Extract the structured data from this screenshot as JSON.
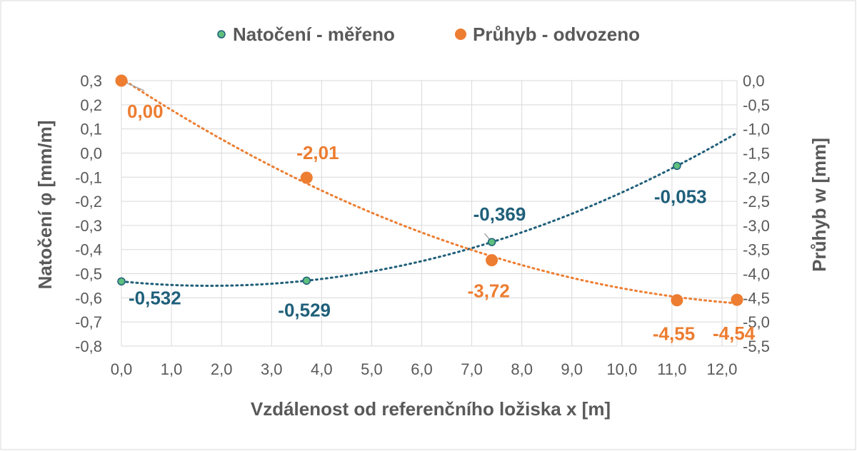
{
  "chart_data": {
    "type": "scatter",
    "x_axis": {
      "label": "Vzdálenost od referenčního ložiska x [m]",
      "range": [
        0,
        12.3
      ],
      "ticks": [
        0,
        1,
        2,
        3,
        4,
        5,
        6,
        7,
        8,
        9,
        10,
        11,
        12
      ],
      "tick_labels": [
        "0,0",
        "1,0",
        "2,0",
        "3,0",
        "4,0",
        "5,0",
        "6,0",
        "7,0",
        "8,0",
        "9,0",
        "10,0",
        "11,0",
        "12,0"
      ]
    },
    "y_axis_left": {
      "label": "Natočení φ [mm/m]",
      "range": [
        -0.8,
        0.3
      ],
      "ticks": [
        0.3,
        0.2,
        0.1,
        0.0,
        -0.1,
        -0.2,
        -0.3,
        -0.4,
        -0.5,
        -0.6,
        -0.7,
        -0.8
      ],
      "tick_labels": [
        "0,3",
        "0,2",
        "0,1",
        "0,0",
        "-0,1",
        "-0,2",
        "-0,3",
        "-0,4",
        "-0,5",
        "-0,6",
        "-0,7",
        "-0,8"
      ]
    },
    "y_axis_right": {
      "label": "Průhyb w [mm]",
      "range": [
        -5.5,
        0.0
      ],
      "ticks": [
        0.0,
        -0.5,
        -1.0,
        -1.5,
        -2.0,
        -2.5,
        -3.0,
        -3.5,
        -4.0,
        -4.5,
        -5.0,
        -5.5
      ],
      "tick_labels": [
        "0,0",
        "-0,5",
        "-1,0",
        "-1,5",
        "-2,0",
        "-2,5",
        "-3,0",
        "-3,5",
        "-4,0",
        "-4,5",
        "-5,0",
        "-5,5"
      ]
    },
    "grid": true,
    "legend_position": "top-center",
    "series": [
      {
        "name": "Natočení - měřeno",
        "axis": "left",
        "marker": "small-circle",
        "color": "#1f5f7a",
        "marker_fill": "#5fbf7f",
        "trendline": {
          "type": "polynomial-2",
          "style": "dotted",
          "x_range": [
            0,
            12.3
          ]
        },
        "points": [
          {
            "x": 0.0,
            "y": -0.532,
            "label": "-0,532"
          },
          {
            "x": 3.7,
            "y": -0.529,
            "label": "-0,529"
          },
          {
            "x": 7.4,
            "y": -0.369,
            "label": "-0,369"
          },
          {
            "x": 11.1,
            "y": -0.053,
            "label": "-0,053"
          }
        ]
      },
      {
        "name": "Průhyb - odvozeno",
        "axis": "right",
        "marker": "large-circle",
        "color": "#ed7d31",
        "marker_fill": "#ed7d31",
        "trendline": {
          "type": "polynomial-2",
          "style": "dotted",
          "x_range": [
            0,
            12.3
          ]
        },
        "points": [
          {
            "x": 0.0,
            "y": 0.0,
            "label": "0,00"
          },
          {
            "x": 3.7,
            "y": -2.01,
            "label": "-2,01"
          },
          {
            "x": 7.4,
            "y": -3.72,
            "label": "-3,72"
          },
          {
            "x": 11.1,
            "y": -4.55,
            "label": "-4,55"
          },
          {
            "x": 12.3,
            "y": -4.54,
            "label": "-4,54"
          }
        ]
      }
    ]
  }
}
